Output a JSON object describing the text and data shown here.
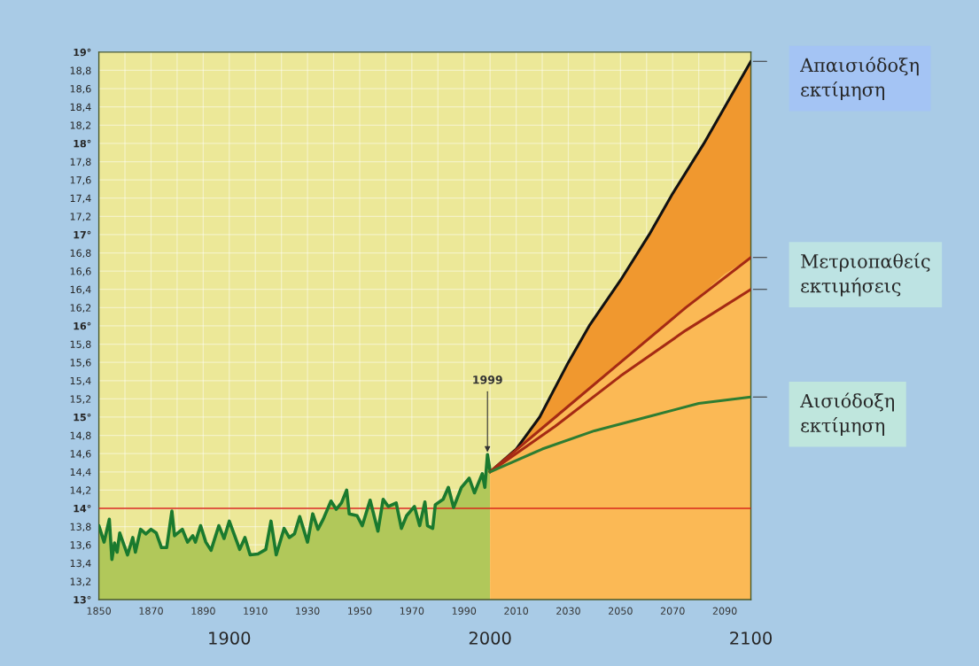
{
  "chart_data": {
    "type": "line",
    "xlim": [
      1850,
      2100
    ],
    "ylim": [
      13,
      19
    ],
    "xticks": [
      1850,
      {
        "value": 1860,
        "label": null
      },
      1870,
      {
        "value": 1880,
        "label": null
      },
      1890,
      {
        "value": 1900,
        "label": null
      },
      1910,
      {
        "value": 1920,
        "label": null
      },
      1930,
      {
        "value": 1940,
        "label": null
      },
      1950,
      {
        "value": 1960,
        "label": null
      },
      1970,
      {
        "value": 1980,
        "label": null
      },
      1990,
      {
        "value": 2000,
        "label": null
      },
      2010,
      {
        "value": 2020,
        "label": null
      },
      2030,
      {
        "value": 2040,
        "label": null
      },
      2050,
      {
        "value": 2060,
        "label": null
      },
      2070,
      {
        "value": 2080,
        "label": null
      },
      2090,
      {
        "value": 2100,
        "label": null
      }
    ],
    "x2lim": [
      1850,
      2100
    ],
    "x2ticks": [
      1900,
      2000,
      2100
    ],
    "yticks": [
      {
        "value": 13,
        "label": "13°"
      },
      {
        "value": 13.2,
        "label": "13,2"
      },
      {
        "value": 13.4,
        "label": "13,4"
      },
      {
        "value": 13.6,
        "label": "13,6"
      },
      {
        "value": 13.8,
        "label": "13,8"
      },
      {
        "value": 14,
        "label": "14°"
      },
      {
        "value": 14.2,
        "label": "14,2"
      },
      {
        "value": 14.4,
        "label": "14,4"
      },
      {
        "value": 14.6,
        "label": "14,6"
      },
      {
        "value": 14.8,
        "label": "14,8"
      },
      {
        "value": 15,
        "label": "15°"
      },
      {
        "value": 15.2,
        "label": "15,2"
      },
      {
        "value": 15.4,
        "label": "15,4"
      },
      {
        "value": 15.6,
        "label": "15,6"
      },
      {
        "value": 15.8,
        "label": "15,8"
      },
      {
        "value": 16,
        "label": "16°"
      },
      {
        "value": 16.2,
        "label": "16,2"
      },
      {
        "value": 16.4,
        "label": "16,4"
      },
      {
        "value": 16.6,
        "label": "16,6"
      },
      {
        "value": 16.8,
        "label": "16,8"
      },
      {
        "value": 17,
        "label": "17°"
      },
      {
        "value": 17.2,
        "label": "17,2"
      },
      {
        "value": 17.4,
        "label": "17,4"
      },
      {
        "value": 17.6,
        "label": "17,6"
      },
      {
        "value": 17.8,
        "label": "17,8"
      },
      {
        "value": 18,
        "label": "18°"
      },
      {
        "value": 18.2,
        "label": "18,2"
      },
      {
        "value": 18.4,
        "label": "18,4"
      },
      {
        "value": 18.6,
        "label": "18,6"
      },
      {
        "value": 18.8,
        "label": "18,8"
      },
      {
        "value": 19,
        "label": "19°"
      }
    ],
    "grid": true,
    "legend": false,
    "ref_lines": [
      {
        "axis": "y",
        "value": 14,
        "color": "#d9291c"
      }
    ],
    "annotations": [
      {
        "text": "1999",
        "x": 1999,
        "y": 14.59
      }
    ],
    "series": [
      {
        "type": "area",
        "color": "#1a7a2e",
        "x": [
          1850,
          1852,
          1854,
          1855,
          1856,
          1857,
          1858,
          1861,
          1863,
          1864,
          1866,
          1868,
          1870,
          1872,
          1874,
          1876,
          1878,
          1879,
          1882,
          1884,
          1886,
          1887,
          1889,
          1891,
          1893,
          1896,
          1898,
          1900,
          1904,
          1906,
          1908,
          1911,
          1914,
          1916,
          1918,
          1921,
          1923,
          1925,
          1927,
          1930,
          1932,
          1934,
          1936,
          1939,
          1941,
          1943,
          1945,
          1946,
          1949,
          1951,
          1954,
          1957,
          1959,
          1961,
          1964,
          1966,
          1968,
          1971,
          1973,
          1975,
          1976,
          1978,
          1979,
          1982,
          1984,
          1986,
          1989,
          1992,
          1994,
          1997,
          1998,
          1999,
          2000
        ],
        "values": [
          13.81,
          13.63,
          13.88,
          13.44,
          13.62,
          13.52,
          13.73,
          13.49,
          13.68,
          13.52,
          13.77,
          13.72,
          13.77,
          13.73,
          13.57,
          13.57,
          13.97,
          13.7,
          13.77,
          13.63,
          13.7,
          13.63,
          13.81,
          13.63,
          13.54,
          13.81,
          13.67,
          13.86,
          13.55,
          13.68,
          13.49,
          13.5,
          13.55,
          13.86,
          13.49,
          13.78,
          13.68,
          13.72,
          13.91,
          13.63,
          13.94,
          13.77,
          13.88,
          14.08,
          13.99,
          14.06,
          14.2,
          13.94,
          13.92,
          13.81,
          14.09,
          13.75,
          14.1,
          14.02,
          14.06,
          13.78,
          13.92,
          14.02,
          13.81,
          14.07,
          13.81,
          13.78,
          14.04,
          14.1,
          14.23,
          14.01,
          14.23,
          14.33,
          14.17,
          14.38,
          14.23,
          14.59,
          14.41
        ]
      },
      {
        "type": "area",
        "name": "Απαισιόδοξη εκτίμηση",
        "color": "#111111",
        "x": [
          2000,
          2010,
          2019,
          2030,
          2038,
          2050,
          2061,
          2070,
          2082,
          2090,
          2100
        ],
        "values": [
          14.4,
          14.65,
          15.0,
          15.6,
          16.0,
          16.5,
          17.0,
          17.45,
          18.0,
          18.4,
          18.9
        ],
        "upper": [
          14.4,
          14.65,
          15.0,
          15.6,
          16.0,
          16.5,
          17.0,
          17.45,
          18.0,
          18.4,
          18.9
        ],
        "lower": [
          14.4,
          14.64,
          14.86,
          15.13,
          15.31,
          15.6,
          15.86,
          16.08,
          16.37,
          16.57,
          16.75
        ]
      },
      {
        "type": "line",
        "name": "Μετριοπαθείς εκτιμήσεις",
        "color": "#a52a14",
        "x": [
          2000,
          2025,
          2050,
          2075,
          2100
        ],
        "values": [
          14.4,
          15.0,
          15.6,
          16.2,
          16.75
        ]
      },
      {
        "type": "line",
        "color": "#a52a14",
        "x": [
          2000,
          2025,
          2050,
          2075,
          2100
        ],
        "values": [
          14.4,
          14.9,
          15.45,
          15.95,
          16.4
        ]
      },
      {
        "type": "line",
        "name": "Αισιόδοξη εκτίμηση",
        "color": "#2e7d32",
        "x": [
          2000,
          2020,
          2040,
          2060,
          2080,
          2100
        ],
        "values": [
          14.4,
          14.65,
          14.85,
          15.0,
          15.15,
          15.22
        ]
      }
    ]
  }
}
